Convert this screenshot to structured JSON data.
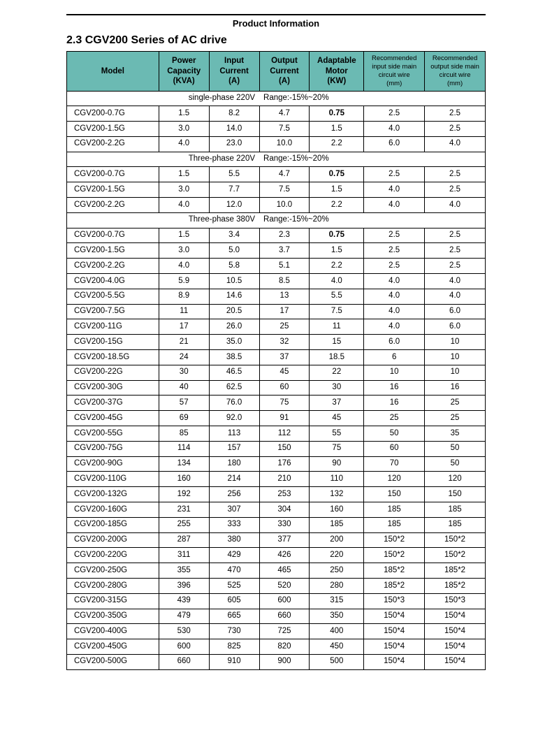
{
  "header": {
    "title": "Product Information"
  },
  "section": {
    "title": "2.3 CGV200 Series of AC drive"
  },
  "table": {
    "columns": [
      {
        "l1": "",
        "l2": "Model",
        "l3": ""
      },
      {
        "l1": "Power",
        "l2": "Capacity",
        "l3": "(KVA)"
      },
      {
        "l1": "Input",
        "l2": "Current",
        "l3": "(A)"
      },
      {
        "l1": "Output",
        "l2": "Current",
        "l3": "(A)"
      },
      {
        "l1": "Adaptable",
        "l2": "Motor",
        "l3": "(KW)"
      },
      {
        "l1": "Recommended",
        "l2": "input side main",
        "l3": "circuit wire",
        "l4": "(mm)"
      },
      {
        "l1": "Recommended",
        "l2": "output side main",
        "l3": "circuit wire",
        "l4": "(mm)"
      }
    ],
    "col_widths": [
      "22%",
      "12%",
      "12%",
      "12%",
      "13%",
      "14.5%",
      "14.5%"
    ],
    "header_bg": "#6bbab3",
    "groups": [
      {
        "label_left": "single-phase  220V",
        "label_right": "Range:-15%~20%",
        "rows": [
          [
            "CGV200-0.7G",
            "1.5",
            "8.2",
            "4.7",
            "0.75",
            "2.5",
            "2.5"
          ],
          [
            "CGV200-1.5G",
            "3.0",
            "14.0",
            "7.5",
            "1.5",
            "4.0",
            "2.5"
          ],
          [
            "CGV200-2.2G",
            "4.0",
            "23.0",
            "10.0",
            "2.2",
            "6.0",
            "4.0"
          ]
        ]
      },
      {
        "label_left": "Three-phase  220V",
        "label_right": "Range:-15%~20%",
        "rows": [
          [
            "CGV200-0.7G",
            "1.5",
            "5.5",
            "4.7",
            "0.75",
            "2.5",
            "2.5"
          ],
          [
            "CGV200-1.5G",
            "3.0",
            "7.7",
            "7.5",
            "1.5",
            "4.0",
            "2.5"
          ],
          [
            "CGV200-2.2G",
            "4.0",
            "12.0",
            "10.0",
            "2.2",
            "4.0",
            "4.0"
          ]
        ]
      },
      {
        "label_left": "Three-phase 380V",
        "label_right": "Range:-15%~20%",
        "rows": [
          [
            "CGV200-0.7G",
            "1.5",
            "3.4",
            "2.3",
            "0.75",
            "2.5",
            "2.5"
          ],
          [
            "CGV200-1.5G",
            "3.0",
            "5.0",
            "3.7",
            "1.5",
            "2.5",
            "2.5"
          ],
          [
            "CGV200-2.2G",
            "4.0",
            "5.8",
            "5.1",
            "2.2",
            "2.5",
            "2.5"
          ],
          [
            "CGV200-4.0G",
            "5.9",
            "10.5",
            "8.5",
            "4.0",
            "4.0",
            "4.0"
          ],
          [
            "CGV200-5.5G",
            "8.9",
            "14.6",
            "13",
            "5.5",
            "4.0",
            "4.0"
          ],
          [
            "CGV200-7.5G",
            "11",
            "20.5",
            "17",
            "7.5",
            "4.0",
            "6.0"
          ],
          [
            "CGV200-11G",
            "17",
            "26.0",
            "25",
            "11",
            "4.0",
            "6.0"
          ],
          [
            "CGV200-15G",
            "21",
            "35.0",
            "32",
            "15",
            "6.0",
            "10"
          ],
          [
            "CGV200-18.5G",
            "24",
            "38.5",
            "37",
            "18.5",
            "6",
            "10"
          ],
          [
            "CGV200-22G",
            "30",
            "46.5",
            "45",
            "22",
            "10",
            "10"
          ],
          [
            "CGV200-30G",
            "40",
            "62.5",
            "60",
            "30",
            "16",
            "16"
          ],
          [
            "CGV200-37G",
            "57",
            "76.0",
            "75",
            "37",
            "16",
            "25"
          ],
          [
            "CGV200-45G",
            "69",
            "92.0",
            "91",
            "45",
            "25",
            "25"
          ],
          [
            "CGV200-55G",
            "85",
            "113",
            "112",
            "55",
            "50",
            "35"
          ],
          [
            "CGV200-75G",
            "114",
            "157",
            "150",
            "75",
            "60",
            "50"
          ],
          [
            "CGV200-90G",
            "134",
            "180",
            "176",
            "90",
            "70",
            "50"
          ],
          [
            "CGV200-110G",
            "160",
            "214",
            "210",
            "110",
            "120",
            "120"
          ],
          [
            "CGV200-132G",
            "192",
            "256",
            "253",
            "132",
            "150",
            "150"
          ],
          [
            "CGV200-160G",
            "231",
            "307",
            "304",
            "160",
            "185",
            "185"
          ],
          [
            "CGV200-185G",
            "255",
            "333",
            "330",
            "185",
            "185",
            "185"
          ],
          [
            "CGV200-200G",
            "287",
            "380",
            "377",
            "200",
            "150*2",
            "150*2"
          ],
          [
            "CGV200-220G",
            "311",
            "429",
            "426",
            "220",
            "150*2",
            "150*2"
          ],
          [
            "CGV200-250G",
            "355",
            "470",
            "465",
            "250",
            "185*2",
            "185*2"
          ],
          [
            "CGV200-280G",
            "396",
            "525",
            "520",
            "280",
            "185*2",
            "185*2"
          ],
          [
            "CGV200-315G",
            "439",
            "605",
            "600",
            "315",
            "150*3",
            "150*3"
          ],
          [
            "CGV200-350G",
            "479",
            "665",
            "660",
            "350",
            "150*4",
            "150*4"
          ],
          [
            "CGV200-400G",
            "530",
            "730",
            "725",
            "400",
            "150*4",
            "150*4"
          ],
          [
            "CGV200-450G",
            "600",
            "825",
            "820",
            "450",
            "150*4",
            "150*4"
          ],
          [
            "CGV200-500G",
            "660",
            "910",
            "900",
            "500",
            "150*4",
            "150*4"
          ]
        ]
      }
    ]
  }
}
